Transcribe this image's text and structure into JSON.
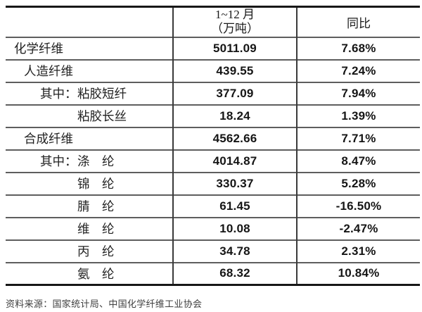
{
  "table": {
    "header": {
      "col1": "",
      "col2_line1": "1~12 月",
      "col2_line2": "（万吨）",
      "col3": "同比"
    },
    "rows": [
      {
        "prefix": "",
        "label": "化学纤维",
        "indent": 0,
        "value": "5011.09",
        "yoy": "7.68%"
      },
      {
        "prefix": "",
        "label": "人造纤维",
        "indent": 1,
        "value": "439.55",
        "yoy": "7.24%"
      },
      {
        "prefix": "其中：",
        "label": "粘胶短纤",
        "indent": 2,
        "value": "377.09",
        "yoy": "7.94%"
      },
      {
        "prefix": "",
        "label": "粘胶长丝",
        "indent": 3,
        "value": "18.24",
        "yoy": "1.39%"
      },
      {
        "prefix": "",
        "label": "合成纤维",
        "indent": 1,
        "value": "4562.66",
        "yoy": "7.71%"
      },
      {
        "prefix": "其中：",
        "label": "涤　纶",
        "indent": 2,
        "value": "4014.87",
        "yoy": "8.47%"
      },
      {
        "prefix": "",
        "label": "锦　纶",
        "indent": 3,
        "value": "330.37",
        "yoy": "5.28%"
      },
      {
        "prefix": "",
        "label": "腈　纶",
        "indent": 3,
        "value": "61.45",
        "yoy": "-16.50%"
      },
      {
        "prefix": "",
        "label": "维　纶",
        "indent": 3,
        "value": "10.08",
        "yoy": "-2.47%"
      },
      {
        "prefix": "",
        "label": "丙　纶",
        "indent": 3,
        "value": "34.78",
        "yoy": "2.31%"
      },
      {
        "prefix": "",
        "label": "氨　纶",
        "indent": 3,
        "value": "68.32",
        "yoy": "10.84%"
      }
    ]
  },
  "footer": {
    "source": "资料来源：国家统计局、中国化学纤维工业协会"
  },
  "colors": {
    "background": "#ffffff",
    "text": "#1c1c1c",
    "thick_border": "#171717",
    "thin_border": "#5e5e5e",
    "vertical_border": "#3a3a3a"
  }
}
